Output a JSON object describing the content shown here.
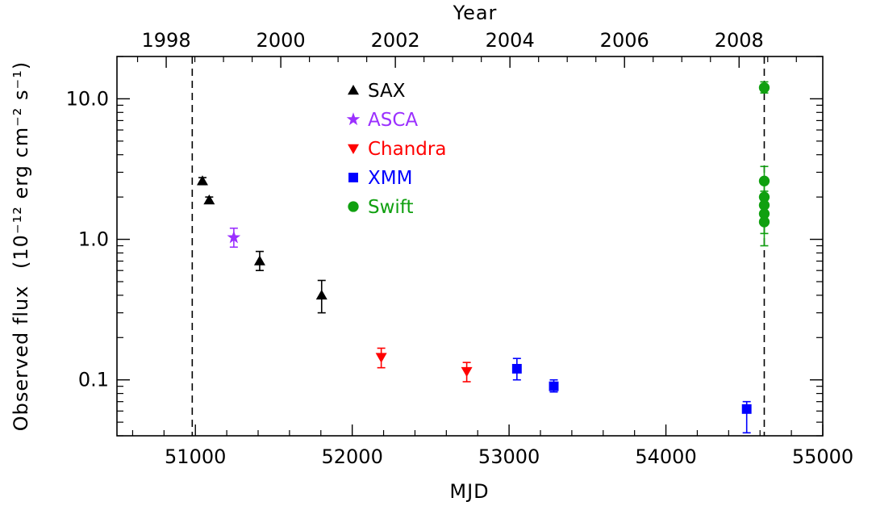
{
  "chart_data": {
    "type": "scatter",
    "xlabel": "MJD",
    "x2label": "Year",
    "ylabel": "Observed flux",
    "ylabel_unit": "(10⁻¹² erg cm⁻² s⁻¹)",
    "xlim": [
      50500,
      55000
    ],
    "ylim": [
      0.04,
      20
    ],
    "yscale": "log",
    "x_ticks": [
      51000,
      52000,
      53000,
      54000,
      55000
    ],
    "x_tick_labels": [
      "51000",
      "52000",
      "53000",
      "54000",
      "55000"
    ],
    "year_ticks": [
      1998,
      2000,
      2002,
      2004,
      2006,
      2008
    ],
    "year_tick_labels": [
      "1998",
      "2000",
      "2002",
      "2004",
      "2006",
      "2008"
    ],
    "y_ticks": [
      0.1,
      1.0,
      10.0
    ],
    "y_tick_labels": [
      "0.1",
      "1.0",
      "10.0"
    ],
    "vertical_lines": [
      50980,
      54627
    ],
    "legend_position": "top-center",
    "series": [
      {
        "name": "SAX",
        "marker": "triangle-up",
        "color": "#000000",
        "points": [
          {
            "x": 51045,
            "y": 2.6,
            "ylo": 2.45,
            "yhi": 2.75
          },
          {
            "x": 51088,
            "y": 1.9,
            "ylo": 1.8,
            "yhi": 2.0
          },
          {
            "x": 51410,
            "y": 0.7,
            "ylo": 0.6,
            "yhi": 0.82
          },
          {
            "x": 51805,
            "y": 0.4,
            "ylo": 0.3,
            "yhi": 0.51
          }
        ]
      },
      {
        "name": "ASCA",
        "marker": "star",
        "color": "#9b30ff",
        "points": [
          {
            "x": 51245,
            "y": 1.03,
            "ylo": 0.88,
            "yhi": 1.2
          }
        ]
      },
      {
        "name": "Chandra",
        "marker": "triangle-down",
        "color": "#ff0000",
        "points": [
          {
            "x": 52185,
            "y": 0.145,
            "ylo": 0.122,
            "yhi": 0.168
          },
          {
            "x": 52730,
            "y": 0.115,
            "ylo": 0.097,
            "yhi": 0.133
          }
        ]
      },
      {
        "name": "XMM",
        "marker": "square",
        "color": "#0000ff",
        "points": [
          {
            "x": 53050,
            "y": 0.12,
            "ylo": 0.1,
            "yhi": 0.142
          },
          {
            "x": 53285,
            "y": 0.09,
            "ylo": 0.082,
            "yhi": 0.1
          },
          {
            "x": 54515,
            "y": 0.062,
            "ylo": 0.042,
            "yhi": 0.07
          }
        ]
      },
      {
        "name": "Swift",
        "marker": "circle",
        "color": "#10a010",
        "points": [
          {
            "x": 54627,
            "y": 12.0,
            "ylo": 11.0,
            "yhi": 13.2
          },
          {
            "x": 54627,
            "y": 2.6,
            "ylo": 2.0,
            "yhi": 3.3
          },
          {
            "x": 54627,
            "y": 2.0,
            "ylo": 1.5,
            "yhi": 2.6
          },
          {
            "x": 54627,
            "y": 1.75,
            "ylo": 1.3,
            "yhi": 2.2
          },
          {
            "x": 54627,
            "y": 1.52,
            "ylo": 1.1,
            "yhi": 1.9
          },
          {
            "x": 54627,
            "y": 1.33,
            "ylo": 0.9,
            "yhi": 1.7
          }
        ]
      }
    ]
  }
}
